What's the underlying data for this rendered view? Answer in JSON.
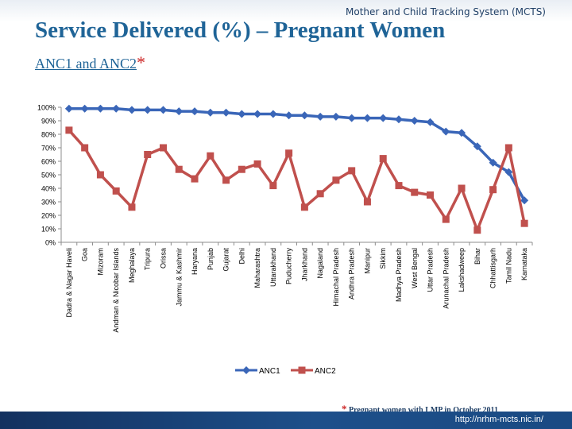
{
  "header": {
    "system_name": "Mother and Child Tracking System (MCTS)"
  },
  "title": "Service Delivered (%) – Pregnant Women",
  "subtitle": {
    "label": "ANC1 and ANC2",
    "marker": "*"
  },
  "footnote": {
    "marker": "*",
    "text": "Pregnant women with LMP in October 2011"
  },
  "footer": {
    "url": "http://nrhm-mcts.nic.in/"
  },
  "colors": {
    "anc1": "#3a66b8",
    "anc2": "#c0504d",
    "title": "#1f6497",
    "footer_bar": "#13315f"
  },
  "chart_data": {
    "type": "line",
    "title": "",
    "xlabel": "",
    "ylabel": "",
    "ylim": [
      0,
      100
    ],
    "yticks": [
      "0%",
      "10%",
      "20%",
      "30%",
      "40%",
      "50%",
      "60%",
      "70%",
      "80%",
      "90%",
      "100%"
    ],
    "legend_position": "bottom",
    "categories": [
      "Dadra & Nagar Haveli",
      "Goa",
      "Mizoram",
      "Andman & Nicobar Islands",
      "Meghalaya",
      "Tripura",
      "Orissa",
      "Jammu & Kashmir",
      "Haryana",
      "Punjab",
      "Gujarat",
      "Delhi",
      "Maharashtra",
      "Uttarakhand",
      "Puducherry",
      "Jharkhand",
      "Nagaland",
      "Himachal Pradesh",
      "Andhra Pradesh",
      "Manipur",
      "Sikkim",
      "Madhya Pradesh",
      "West Bengal",
      "Uttar Pradesh",
      "Arunachal Pradesh",
      "Lakshadweep",
      "Bihar",
      "Chhattisgarh",
      "Tamil Nadu",
      "Karnataka"
    ],
    "series": [
      {
        "name": "ANC1",
        "values": [
          99,
          99,
          99,
          99,
          98,
          98,
          98,
          97,
          97,
          96,
          96,
          95,
          95,
          95,
          94,
          94,
          93,
          93,
          92,
          92,
          92,
          91,
          90,
          89,
          82,
          81,
          71,
          59,
          52,
          31
        ]
      },
      {
        "name": "ANC2",
        "values": [
          83,
          70,
          50,
          38,
          26,
          65,
          70,
          54,
          47,
          64,
          46,
          54,
          58,
          42,
          66,
          26,
          36,
          46,
          53,
          30,
          62,
          42,
          37,
          35,
          17,
          40,
          9,
          39,
          70,
          14
        ]
      }
    ]
  }
}
